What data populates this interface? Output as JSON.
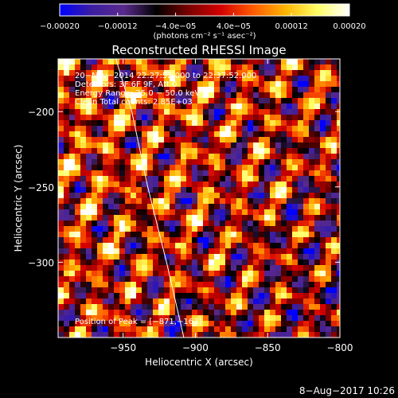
{
  "chart_data": {
    "type": "heatmap",
    "title": "Reconstructed RHESSI Image",
    "xlabel": "Heliocentric X (arcsec)",
    "ylabel": "Heliocentric Y (arcsec)",
    "xlim": [
      -995,
      -800
    ],
    "ylim": [
      -350,
      -165
    ],
    "x_ticks": [
      -950,
      -900,
      -850,
      -800
    ],
    "x_tick_labels": [
      "−950",
      "−900",
      "−850",
      "−800"
    ],
    "y_ticks": [
      -200,
      -250,
      -300
    ],
    "y_tick_labels": [
      "−200",
      "−250",
      "−300"
    ],
    "colorbar": {
      "min": -0.0002,
      "max": 0.0002,
      "ticks": [
        -0.0002,
        -0.00012,
        -4e-05,
        4e-05,
        0.00012,
        0.0002
      ],
      "tick_labels": [
        "−0.00020",
        "−0.00012",
        "−4.0e−05",
        "4.0e−05",
        "0.00012",
        "0.00020"
      ],
      "units_label": "(photons cm⁻² s⁻¹ asec⁻²)",
      "colors": [
        "#0000ff",
        "#3c1ea0",
        "#5a2a8c",
        "#000000",
        "#7a0000",
        "#d40000",
        "#ff5a00",
        "#ffb400",
        "#ffff66",
        "#ffffff"
      ]
    },
    "info_lines": [
      "20−Nov−2014 22:27:52.000 to 22:37:52.000",
      "Detectors: 3F 6F 9F, Att 0",
      "Energy Range: 25.0 − 50.0 keV",
      "Clean   Total counts: 2.85E+03"
    ],
    "peak_text": "Position of Peak = [−871,−163]",
    "limb_curve": [
      [
        -955,
        -165
      ],
      [
        -944,
        -200
      ],
      [
        -933,
        -250
      ],
      [
        -920,
        -300
      ],
      [
        -908,
        -350
      ]
    ],
    "limb_color": "#ffffff",
    "grid": false
  },
  "footer": {
    "date": "8−Aug−2017 10:26"
  }
}
